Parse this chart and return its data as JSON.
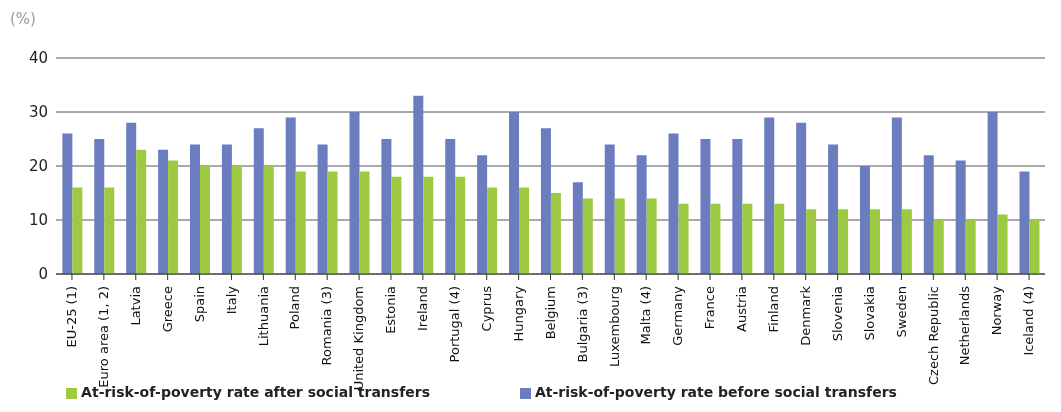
{
  "chart_data": {
    "type": "bar",
    "ylabel": "(%)",
    "categories": [
      "EU-25 (1)",
      "Euro area (1, 2)",
      "Latvia",
      "Greece",
      "Spain",
      "Italy",
      "Lithuania",
      "Poland",
      "Romania (3)",
      "United Kingdom",
      "Estonia",
      "Ireland",
      "Portugal (4)",
      "Cyprus",
      "Hungary",
      "Belgium",
      "Bulgaria (3)",
      "Luxembourg",
      "Malta (4)",
      "Germany",
      "France",
      "Austria",
      "Finland",
      "Denmark",
      "Slovenia",
      "Slovakia",
      "Sweden",
      "Czech Republic",
      "Netherlands",
      "Norway",
      "Iceland (4)"
    ],
    "series": [
      {
        "name": "At-risk-of-poverty rate before social transfers",
        "color": "#6b7dbf",
        "values": [
          26,
          25,
          28,
          23,
          24,
          24,
          27,
          29,
          24,
          30,
          25,
          33,
          25,
          22,
          30,
          27,
          17,
          24,
          22,
          26,
          25,
          25,
          29,
          28,
          24,
          20,
          29,
          22,
          21,
          30,
          19
        ]
      },
      {
        "name": "At-risk-of-poverty rate after social transfers",
        "color": "#9dc943",
        "values": [
          16,
          16,
          23,
          21,
          20,
          20,
          20,
          19,
          19,
          19,
          18,
          18,
          18,
          16,
          16,
          15,
          14,
          14,
          14,
          13,
          13,
          13,
          13,
          12,
          12,
          12,
          12,
          10,
          10,
          11,
          10
        ]
      }
    ],
    "ylim": [
      0,
      40
    ],
    "yticks": [
      0,
      10,
      20,
      30,
      40
    ],
    "grid": "y",
    "legend": "bottom"
  }
}
